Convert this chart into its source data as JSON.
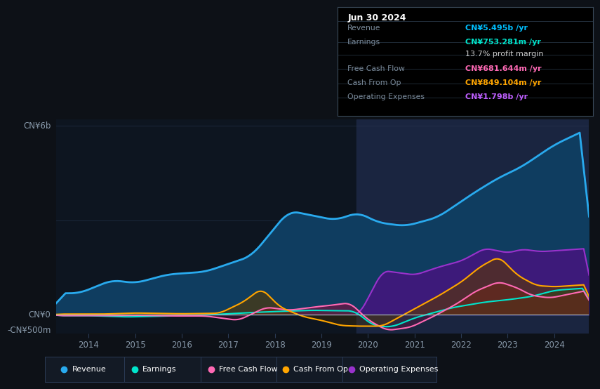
{
  "bg_color": "#0d1117",
  "plot_bg_color": "#0d1520",
  "title": "Jun 30 2024",
  "info_box_rows": [
    {
      "label": "Revenue",
      "value": "CN¥5.495b /yr",
      "value_color": "#00bfff"
    },
    {
      "label": "Earnings",
      "value": "CN¥753.281m /yr",
      "value_color": "#00e5cc"
    },
    {
      "label": "",
      "value": "13.7% profit margin",
      "value_color": "#cccccc"
    },
    {
      "label": "Free Cash Flow",
      "value": "CN¥681.644m /yr",
      "value_color": "#ff69b4"
    },
    {
      "label": "Cash From Op",
      "value": "CN¥849.104m /yr",
      "value_color": "#ffa500"
    },
    {
      "label": "Operating Expenses",
      "value": "CN¥1.798b /yr",
      "value_color": "#bf5fff"
    }
  ],
  "ylabel_top": "CN¥6b",
  "ylabel_zero": "CN¥0",
  "ylabel_neg": "-CN¥500m",
  "series_colors": {
    "revenue_line": "#29aaee",
    "revenue_fill": "#0f3d60",
    "earnings_line": "#00e5cc",
    "earnings_fill": "#004d44",
    "fcf_line": "#ff69b4",
    "fcf_fill": "#7a1040",
    "cop_line": "#ffa500",
    "cop_fill": "#5a3800",
    "opex_line": "#9932cc",
    "opex_fill": "#3d1a7a",
    "highlight_bg": "#1a2540"
  },
  "legend_items": [
    {
      "label": "Revenue",
      "color": "#29aaee"
    },
    {
      "label": "Earnings",
      "color": "#00e5cc"
    },
    {
      "label": "Free Cash Flow",
      "color": "#ff69b4"
    },
    {
      "label": "Cash From Op",
      "color": "#ffa500"
    },
    {
      "label": "Operating Expenses",
      "color": "#9932cc"
    }
  ],
  "ylim": [
    -600,
    6200
  ],
  "xlim": [
    2013.3,
    2024.75
  ]
}
